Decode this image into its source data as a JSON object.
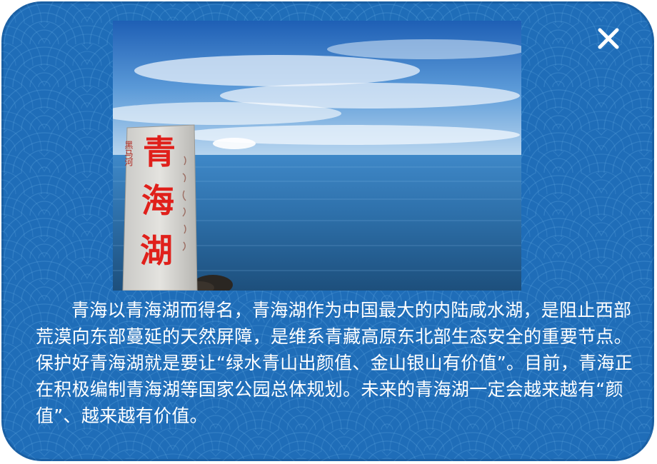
{
  "popup": {
    "close_icon": "close-icon",
    "photo": {
      "stone_main": [
        "青",
        "海",
        "湖"
      ],
      "stone_left_small": "黑马河"
    },
    "paragraph": "青海以青海湖而得名，青海湖作为中国最大的内陆咸水湖，是阻止西部荒漠向东部蔓延的天然屏障，是维系青藏高原东北部生态安全的重要节点。保护好青海湖就是要让“绿水青山出颜值、金山银山有价值”。目前，青海正在积极编制青海湖等国家公园总体规划。未来的青海湖一定会越来越有“颜值”、越来越有价值。"
  },
  "colors": {
    "background": "#1f6db8",
    "text": "#ffffff",
    "stone_text": "#e0201b"
  }
}
